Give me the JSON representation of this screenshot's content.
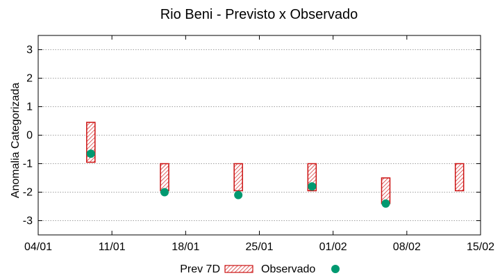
{
  "chart_data": {
    "type": "range-bar-with-points",
    "title": "Rio Beni - Previsto x Observado",
    "ylabel": "Anomalia Categorizada",
    "xlabel": "",
    "ylim": [
      -3.5,
      3.5
    ],
    "yticks": [
      3,
      2,
      1,
      0,
      -1,
      -2,
      -3
    ],
    "xlim": [
      "2021-01-04",
      "2021-02-15"
    ],
    "xticks": [
      {
        "date": "2021-01-04",
        "label": "04/01"
      },
      {
        "date": "2021-01-11",
        "label": "11/01"
      },
      {
        "date": "2021-01-18",
        "label": "18/01"
      },
      {
        "date": "2021-01-25",
        "label": "25/01"
      },
      {
        "date": "2021-02-01",
        "label": "01/02"
      },
      {
        "date": "2021-02-08",
        "label": "08/02"
      },
      {
        "date": "2021-02-15",
        "label": "15/02"
      }
    ],
    "grid": "horizontal-dotted",
    "legend": {
      "position": "bottom-center"
    },
    "series": [
      {
        "name": "Prev 7D",
        "style": "hatched-box",
        "color": "#cc1111",
        "points": [
          {
            "x": "2021-01-09",
            "low": -0.95,
            "high": 0.45
          },
          {
            "x": "2021-01-16",
            "low": -1.95,
            "high": -1.0
          },
          {
            "x": "2021-01-23",
            "low": -1.95,
            "high": -1.0
          },
          {
            "x": "2021-01-30",
            "low": -1.95,
            "high": -1.0
          },
          {
            "x": "2021-02-06",
            "low": -2.4,
            "high": -1.5
          },
          {
            "x": "2021-02-13",
            "low": -1.95,
            "high": -1.0
          }
        ]
      },
      {
        "name": "Observado",
        "style": "filled-circle",
        "color": "#009970",
        "points": [
          {
            "x": "2021-01-09",
            "y": -0.65
          },
          {
            "x": "2021-01-16",
            "y": -2.0
          },
          {
            "x": "2021-01-23",
            "y": -2.1
          },
          {
            "x": "2021-01-30",
            "y": -1.8
          },
          {
            "x": "2021-02-06",
            "y": -2.4
          }
        ]
      }
    ]
  }
}
